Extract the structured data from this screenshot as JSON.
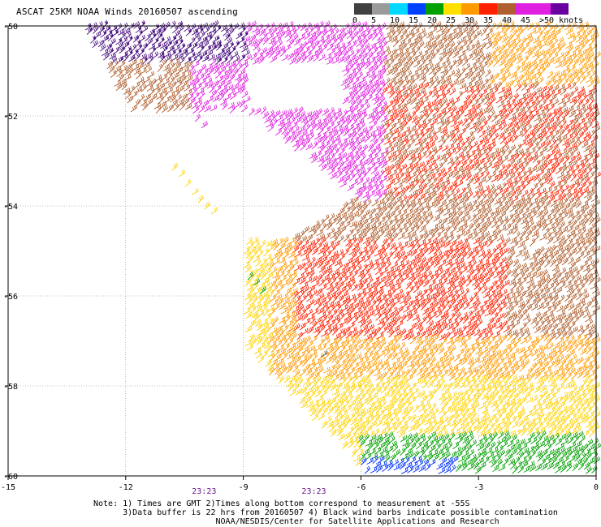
{
  "title": "ASCAT 25KM NOAA Winds 20160507 ascending",
  "legend": {
    "labels": [
      "0",
      "5",
      "10",
      "15",
      "20",
      "25",
      "30",
      "35",
      "40",
      "45",
      ">50 knots"
    ],
    "colors": [
      "#404040",
      "#9a9a9a",
      "#00d8ff",
      "#0040ff",
      "#00a000",
      "#ffe000",
      "#ff9a00",
      "#ff2000",
      "#b06030",
      "#e020e0",
      "#6a00a0",
      "#303030"
    ]
  },
  "axes": {
    "lon_ticks": [
      "-15",
      "-12",
      "-9",
      "-6",
      "-3",
      "0"
    ],
    "lat_ticks": [
      "-50",
      "-52",
      "-54",
      "-56",
      "-58",
      "-60"
    ],
    "lon_range": [
      -15,
      0
    ],
    "lat_range": [
      -60,
      -50
    ]
  },
  "time_labels": [
    {
      "text": "23:23",
      "lon": -10.0
    },
    {
      "text": "23:23",
      "lon": -7.2
    }
  ],
  "notes": {
    "line1": "Note: 1) Times are GMT 2)Times along bottom correspond to measurement at -55S",
    "line2": "      3)Data buffer is 22 hrs from 20160507 4) Black wind barbs indicate possible contamination",
    "line3": "                         NOAA/NESDIS/Center for Satellite Applications and Research"
  }
}
